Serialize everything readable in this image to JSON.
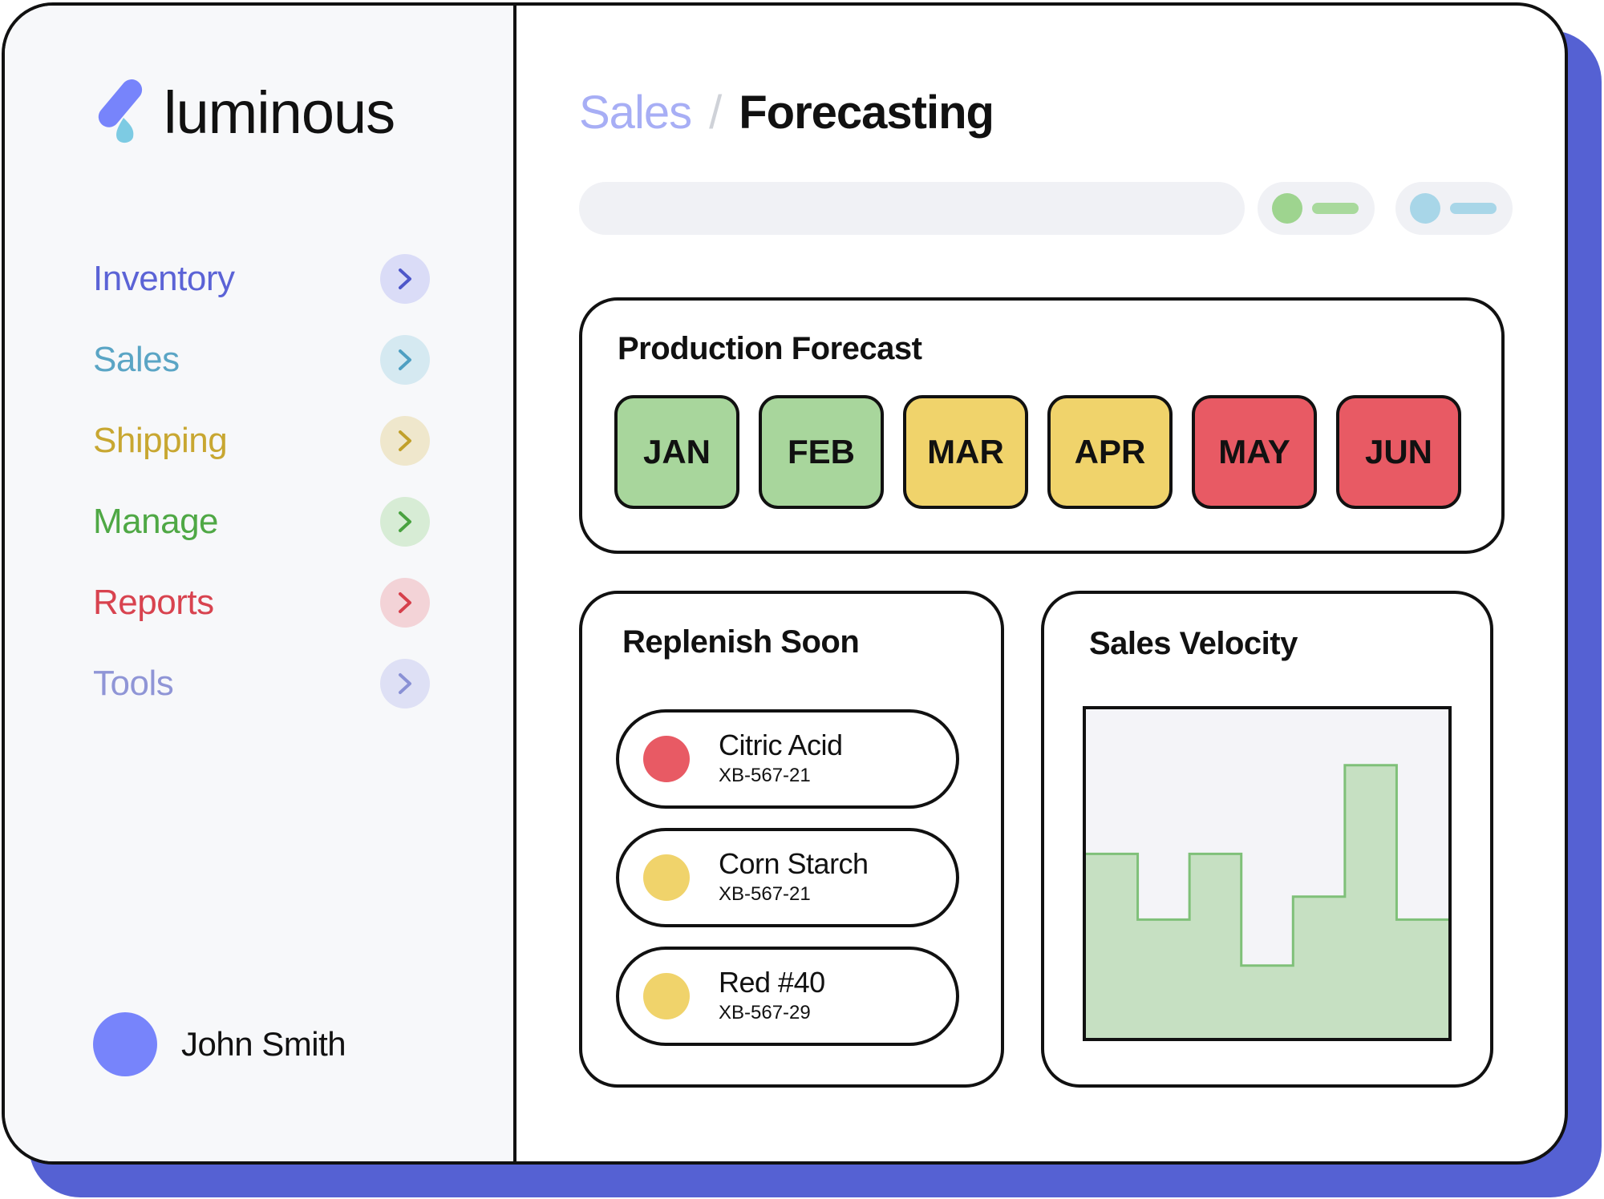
{
  "brand": {
    "name": "luminous"
  },
  "sidebar": {
    "items": [
      {
        "label": "Inventory",
        "color": "#5b63d6",
        "chip_bg": "#dadcf7",
        "chev": "#4e57c9"
      },
      {
        "label": "Sales",
        "color": "#5aa5c5",
        "chip_bg": "#d5e9f1",
        "chev": "#4f9fc2"
      },
      {
        "label": "Shipping",
        "color": "#c8a731",
        "chip_bg": "#efe7cc",
        "chev": "#c1a02a"
      },
      {
        "label": "Manage",
        "color": "#4fa845",
        "chip_bg": "#d7ecd5",
        "chev": "#49a240"
      },
      {
        "label": "Reports",
        "color": "#d8434f",
        "chip_bg": "#f3d3d7",
        "chev": "#d63f4b"
      },
      {
        "label": "Tools",
        "color": "#8f95d6",
        "chip_bg": "#dee0f5",
        "chev": "#8a91d5"
      }
    ],
    "user": {
      "name": "John Smith"
    }
  },
  "header": {
    "breadcrumb": [
      "Sales",
      "/",
      "Forecasting"
    ]
  },
  "toolbar": {
    "pills": [
      {
        "name": "green-toggle",
        "dot": "#9ed48f",
        "bar": "#a8d99c"
      },
      {
        "name": "blue-toggle",
        "dot": "#a8d6e8",
        "bar": "#a8d6e8"
      }
    ]
  },
  "production_forecast": {
    "title": "Production Forecast",
    "months": [
      {
        "label": "JAN",
        "color": "#a8d69c"
      },
      {
        "label": "FEB",
        "color": "#a8d69c"
      },
      {
        "label": "MAR",
        "color": "#f0d36b"
      },
      {
        "label": "APR",
        "color": "#f0d36b"
      },
      {
        "label": "MAY",
        "color": "#e85a64"
      },
      {
        "label": "JUN",
        "color": "#e85a64"
      }
    ]
  },
  "replenish": {
    "title": "Replenish Soon",
    "items": [
      {
        "name": "Citric Acid",
        "code": "XB-567-21",
        "color": "#e85a64"
      },
      {
        "name": "Corn Starch",
        "code": "XB-567-21",
        "color": "#f0d36b"
      },
      {
        "name": "Red #40",
        "code": "XB-567-29",
        "color": "#f0d36b"
      }
    ]
  },
  "sales_velocity": {
    "title": "Sales Velocity"
  },
  "chart_data": {
    "type": "area",
    "title": "Sales Velocity",
    "step": true,
    "x": [
      0,
      1,
      2,
      3,
      4,
      5,
      6
    ],
    "values": [
      0.56,
      0.36,
      0.56,
      0.22,
      0.43,
      0.83,
      0.36
    ],
    "ylim": [
      0,
      1
    ],
    "fill": "#c6e0c2",
    "stroke": "#7fc079",
    "grid": false,
    "legend": "none"
  }
}
